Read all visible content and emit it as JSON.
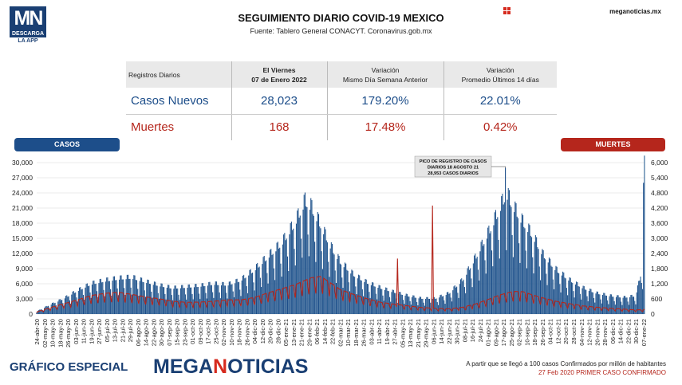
{
  "header": {
    "logo_text": "MN",
    "logo_sub1": "DESCARGA",
    "logo_sub2": "LA APP",
    "title": "SEGUIMIENTO DIARIO COVID-19 MEXICO",
    "subtitle": "Fuente: Tablero General CONACYT. Coronavirus.gob.mx",
    "site": "meganoticias.mx"
  },
  "table": {
    "col0": "Registros Diarios",
    "col1_line1": "El Viernes",
    "col1_line2": "07 de Enero 2022",
    "col2_line1": "Variación",
    "col2_line2": "Mismo Día Semana Anterior",
    "col3_line1": "Variación",
    "col3_line2": "Promedio Últimos 14 días",
    "rows": [
      {
        "label": "Casos Nuevos",
        "value": "28,023",
        "var_week": "179.20%",
        "var_avg": "22.01%"
      },
      {
        "label": "Muertes",
        "value": "168",
        "var_week": "17.48%",
        "var_avg": "0.42%"
      }
    ]
  },
  "legend": {
    "casos": "CASOS",
    "muertes": "MUERTES"
  },
  "colors": {
    "casos_bar": "#2b5f93",
    "casos_bar_dark": "#1d4e8a",
    "muertes_line": "#b5261c",
    "grid": "#e4e4e4"
  },
  "chart_data": {
    "type": "bar",
    "annotation": [
      "PICO DE REGISTRO DE CASOS",
      "DIARIOS 18 AGOSTO 21",
      "28,953 CASOS DIARIOS"
    ],
    "y_left": {
      "min": 0,
      "max": 30000,
      "ticks": [
        "0",
        "3,000",
        "6,000",
        "9,000",
        "12,000",
        "15,000",
        "18,000",
        "21,000",
        "24,000",
        "27,000",
        "30,000"
      ]
    },
    "y_right": {
      "min": 0,
      "max": 6000,
      "ticks": [
        "0",
        "600",
        "1,200",
        "1,800",
        "2,400",
        "3,000",
        "3,600",
        "4,200",
        "4,800",
        "5,400",
        "6,000"
      ]
    },
    "x_labels": [
      "24-abr-20",
      "02-may-20",
      "10-may-20",
      "18-may-20",
      "26-may-20",
      "03-jun-20",
      "11-jun-20",
      "19-jun-20",
      "27-jun-20",
      "05-jul-20",
      "13-jul-20",
      "21-jul-20",
      "29-jul-20",
      "06-ago-20",
      "14-ago-20",
      "22-ago-20",
      "30-ago-20",
      "07-sep-20",
      "15-sep-20",
      "23-sep-20",
      "01-oct-20",
      "09-oct-20",
      "17-oct-20",
      "25-oct-20",
      "02-nov-20",
      "10-nov-20",
      "18-nov-20",
      "26-nov-20",
      "04-dic-20",
      "12-dic-20",
      "20-dic-20",
      "28-dic-20",
      "05-ene-21",
      "13-ene-21",
      "21-ene-21",
      "29-ene-21",
      "06-feb-21",
      "14-feb-21",
      "22-feb-21",
      "02-mar-21",
      "10-mar-21",
      "18-mar-21",
      "26-mar-21",
      "03-abr-21",
      "11-abr-21",
      "19-abr-21",
      "27-abr-21",
      "05-may-21",
      "13-may-21",
      "21-may-21",
      "29-may-21",
      "06-jun-21",
      "14-jun-21",
      "22-jun-21",
      "30-jun-21",
      "08-jul-21",
      "16-jul-21",
      "24-jul-21",
      "01-ago-21",
      "09-ago-21",
      "17-ago-21",
      "25-ago-21",
      "02-sep-21",
      "10-sep-21",
      "18-sep-21",
      "26-sep-21",
      "04-oct-21",
      "12-oct-21",
      "20-oct-21",
      "28-oct-21",
      "04-nov-21",
      "12-nov-21",
      "20-nov-21",
      "28-nov-21",
      "06-dic-21",
      "14-dic-21",
      "22-dic-21",
      "30-dic-21",
      "07-ene-22"
    ],
    "casos_anchors": [
      [
        0,
        500
      ],
      [
        14,
        1800
      ],
      [
        28,
        3000
      ],
      [
        42,
        4500
      ],
      [
        56,
        5800
      ],
      [
        70,
        6400
      ],
      [
        84,
        6800
      ],
      [
        98,
        7000
      ],
      [
        112,
        6200
      ],
      [
        126,
        5500
      ],
      [
        140,
        5000
      ],
      [
        154,
        5200
      ],
      [
        168,
        5400
      ],
      [
        182,
        5800
      ],
      [
        196,
        5600
      ],
      [
        210,
        6500
      ],
      [
        224,
        8500
      ],
      [
        238,
        11000
      ],
      [
        252,
        13500
      ],
      [
        266,
        17500
      ],
      [
        276,
        21500
      ],
      [
        282,
        20500
      ],
      [
        292,
        17000
      ],
      [
        302,
        13000
      ],
      [
        312,
        10000
      ],
      [
        326,
        7500
      ],
      [
        340,
        6000
      ],
      [
        354,
        5000
      ],
      [
        368,
        4200
      ],
      [
        382,
        3500
      ],
      [
        396,
        3000
      ],
      [
        410,
        3000
      ],
      [
        424,
        4000
      ],
      [
        438,
        6500
      ],
      [
        452,
        11000
      ],
      [
        466,
        16000
      ],
      [
        476,
        20000
      ],
      [
        483,
        23000
      ],
      [
        490,
        20500
      ],
      [
        500,
        17500
      ],
      [
        510,
        15000
      ],
      [
        520,
        11500
      ],
      [
        534,
        8500
      ],
      [
        548,
        6500
      ],
      [
        562,
        5000
      ],
      [
        576,
        4000
      ],
      [
        590,
        3500
      ],
      [
        604,
        3200
      ],
      [
        616,
        3500
      ],
      [
        623,
        9000
      ],
      [
        624,
        26000
      ],
      [
        625,
        28023
      ]
    ],
    "muertes_anchors": [
      [
        0,
        80
      ],
      [
        20,
        300
      ],
      [
        40,
        500
      ],
      [
        56,
        680
      ],
      [
        70,
        760
      ],
      [
        84,
        800
      ],
      [
        98,
        720
      ],
      [
        112,
        630
      ],
      [
        126,
        560
      ],
      [
        140,
        470
      ],
      [
        154,
        430
      ],
      [
        168,
        440
      ],
      [
        182,
        470
      ],
      [
        196,
        520
      ],
      [
        210,
        520
      ],
      [
        224,
        610
      ],
      [
        238,
        780
      ],
      [
        252,
        930
      ],
      [
        266,
        1080
      ],
      [
        282,
        1330
      ],
      [
        292,
        1380
      ],
      [
        302,
        1150
      ],
      [
        312,
        900
      ],
      [
        326,
        720
      ],
      [
        340,
        560
      ],
      [
        354,
        430
      ],
      [
        368,
        360
      ],
      [
        382,
        300
      ],
      [
        396,
        240
      ],
      [
        410,
        210
      ],
      [
        424,
        190
      ],
      [
        438,
        250
      ],
      [
        452,
        380
      ],
      [
        466,
        560
      ],
      [
        476,
        700
      ],
      [
        490,
        830
      ],
      [
        500,
        820
      ],
      [
        510,
        700
      ],
      [
        520,
        600
      ],
      [
        534,
        470
      ],
      [
        548,
        380
      ],
      [
        562,
        300
      ],
      [
        576,
        250
      ],
      [
        590,
        210
      ],
      [
        604,
        180
      ],
      [
        616,
        150
      ],
      [
        625,
        168
      ]
    ],
    "muertes_spikes": [
      [
        371,
        2200
      ],
      [
        407,
        4300
      ]
    ]
  },
  "footer": {
    "left": "GRÁFICO ESPECIAL",
    "brand_a": "MEGA",
    "brand_m": "N",
    "brand_b": "OTICIAS",
    "note1": "A partir que se llegó a 100 casos Confirmados por millón de habitantes",
    "note2": "27 Feb 2020 PRIMER CASO CONFIRMADO"
  }
}
